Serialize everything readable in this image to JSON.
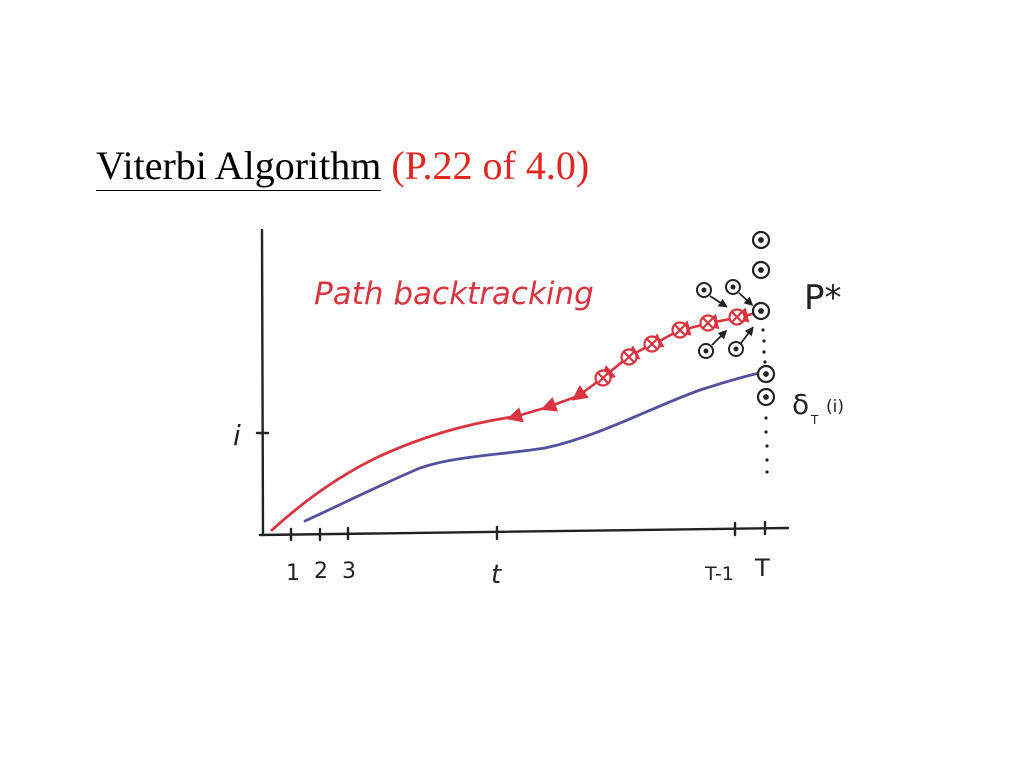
{
  "slide": {
    "title": "Viterbi Algorithm",
    "reference": "(P.22 of 4.0)"
  },
  "diagram": {
    "caption": "Path backtracking",
    "y_axis_label": "i",
    "x_ticks": [
      "1",
      "2",
      "3",
      "t",
      "T-1",
      "T"
    ],
    "best_path_label": "P*",
    "delta_label": "δ",
    "delta_subscript": "T",
    "delta_arg": "(i)",
    "colors": {
      "backtrack": "#d9343f",
      "path": "#55509e",
      "ink": "#222222"
    }
  }
}
